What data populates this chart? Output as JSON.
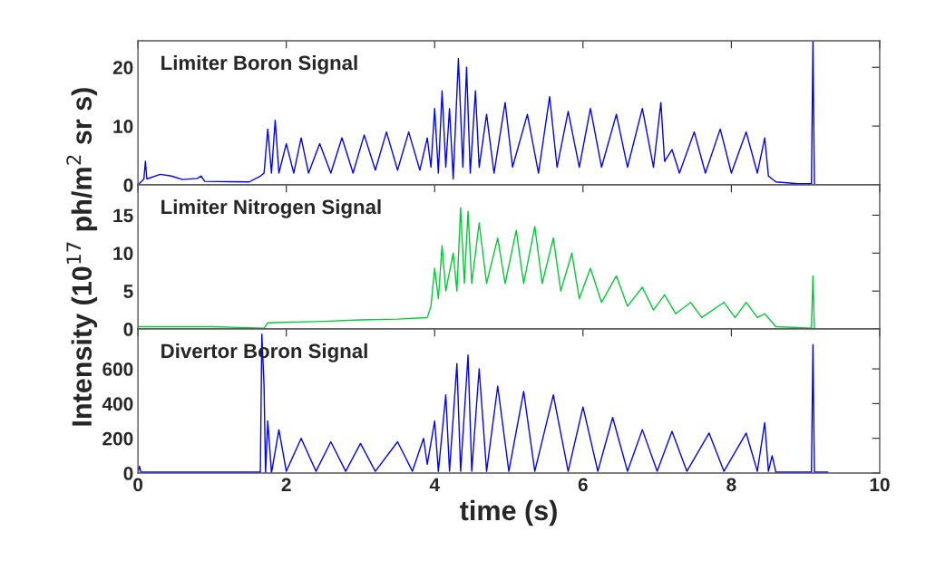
{
  "chart_data": [
    {
      "type": "line",
      "annotations": [
        "Limiter Boron Signal"
      ],
      "xlim": [
        0,
        10
      ],
      "xticks": [
        0,
        2,
        4,
        6,
        8,
        10
      ],
      "ylim": [
        0,
        24.5
      ],
      "yticks": [
        0,
        10,
        20
      ],
      "tick_labels": "y",
      "grid": false,
      "legend": false,
      "series": [
        {
          "color": "#0000ff",
          "x": [
            0,
            0.08,
            0.1,
            0.12,
            0.3,
            0.45,
            0.6,
            0.8,
            0.85,
            0.9,
            1.5,
            1.65,
            1.7,
            1.75,
            1.8,
            1.85,
            1.9,
            2.0,
            2.1,
            2.2,
            2.3,
            2.45,
            2.6,
            2.75,
            2.9,
            3.05,
            3.2,
            3.35,
            3.5,
            3.65,
            3.8,
            3.9,
            3.95,
            4.0,
            4.05,
            4.1,
            4.15,
            4.2,
            4.25,
            4.32,
            4.38,
            4.43,
            4.48,
            4.55,
            4.6,
            4.7,
            4.8,
            4.95,
            5.05,
            5.25,
            5.4,
            5.55,
            5.65,
            5.8,
            5.95,
            6.1,
            6.25,
            6.45,
            6.6,
            6.8,
            6.95,
            7.05,
            7.1,
            7.2,
            7.3,
            7.5,
            7.65,
            7.85,
            8.0,
            8.2,
            8.35,
            8.45,
            8.5,
            8.6,
            8.9,
            9.08,
            9.1,
            9.12
          ],
          "values": [
            0,
            1.0,
            4.0,
            1.0,
            1.8,
            1.5,
            0.9,
            1.1,
            1.5,
            0.6,
            0.5,
            1.5,
            2,
            9.5,
            2,
            11,
            2,
            7,
            2,
            8,
            2,
            7,
            2,
            8,
            2,
            8.5,
            2.5,
            9,
            2.5,
            9,
            2.5,
            8,
            3,
            13,
            2,
            16,
            3,
            13,
            1,
            21.5,
            3,
            20,
            2,
            16,
            3,
            12,
            2,
            14,
            3,
            12,
            2,
            15,
            3,
            12.5,
            3,
            13,
            3,
            12,
            3,
            13,
            3,
            14,
            4,
            6,
            2,
            9,
            2,
            9.5,
            2,
            9,
            2,
            8,
            1.5,
            0.5,
            0.2,
            0.2,
            24.5,
            0.2
          ]
        }
      ]
    },
    {
      "type": "line",
      "annotations": [
        "Limiter Nitrogen Signal"
      ],
      "ylabel": "Intensity (10$^{17}$ ph/m$^{2}$ sr s)",
      "xlim": [
        0,
        10
      ],
      "xticks": [
        0,
        2,
        4,
        6,
        8,
        10
      ],
      "ylim": [
        0,
        19
      ],
      "yticks": [
        0,
        5,
        10,
        15
      ],
      "tick_labels": "y",
      "grid": false,
      "legend": false,
      "series": [
        {
          "color": "#00cc33",
          "x": [
            0,
            1.0,
            1.7,
            1.75,
            2.5,
            3.0,
            3.5,
            3.9,
            3.95,
            4.0,
            4.05,
            4.1,
            4.15,
            4.25,
            4.3,
            4.35,
            4.4,
            4.45,
            4.5,
            4.6,
            4.7,
            4.85,
            4.95,
            5.1,
            5.2,
            5.35,
            5.45,
            5.6,
            5.7,
            5.85,
            5.95,
            6.1,
            6.25,
            6.45,
            6.6,
            6.8,
            6.95,
            7.1,
            7.25,
            7.45,
            7.6,
            7.9,
            8.05,
            8.2,
            8.35,
            8.45,
            8.6,
            9.08,
            9.1,
            9.12
          ],
          "values": [
            0.3,
            0.3,
            0.1,
            0.8,
            1.0,
            1.2,
            1.3,
            1.5,
            3,
            8,
            4,
            11,
            5,
            10,
            5,
            16,
            6,
            15.5,
            6,
            14,
            6,
            12,
            6,
            13,
            6,
            13.5,
            6,
            12,
            5,
            10,
            4,
            8,
            3.5,
            7,
            3,
            5.5,
            2.5,
            4.5,
            2,
            3.5,
            1.5,
            3.5,
            1.5,
            3.5,
            1.5,
            2,
            0.3,
            0.1,
            7,
            0
          ]
        }
      ]
    },
    {
      "type": "line",
      "annotations": [
        "Divertor Boron Signal"
      ],
      "xlabel": "time (s)",
      "xlim": [
        0,
        10
      ],
      "xticks": [
        0,
        2,
        4,
        6,
        8,
        10
      ],
      "ylim": [
        0,
        830
      ],
      "yticks": [
        0,
        200,
        400,
        600
      ],
      "grid": false,
      "legend": false,
      "series": [
        {
          "color": "#0000ff",
          "x": [
            0,
            0.02,
            0.04,
            1.6,
            1.65,
            1.67,
            1.7,
            1.72,
            1.75,
            1.8,
            1.9,
            2.0,
            2.2,
            2.4,
            2.6,
            2.8,
            3.0,
            3.2,
            3.5,
            3.7,
            3.85,
            3.9,
            4.0,
            4.05,
            4.15,
            4.2,
            4.3,
            4.35,
            4.45,
            4.5,
            4.6,
            4.7,
            4.85,
            5.0,
            5.2,
            5.35,
            5.6,
            5.8,
            6.0,
            6.2,
            6.4,
            6.6,
            6.8,
            7.0,
            7.2,
            7.4,
            7.7,
            7.9,
            8.2,
            8.35,
            8.45,
            8.5,
            8.55,
            8.6,
            9.08,
            9.1,
            9.12,
            9.3
          ],
          "values": [
            0,
            40,
            5,
            5,
            5,
            800,
            500,
            0,
            300,
            0,
            250,
            10,
            200,
            10,
            180,
            10,
            170,
            10,
            180,
            10,
            200,
            50,
            300,
            10,
            450,
            10,
            630,
            10,
            680,
            10,
            600,
            10,
            500,
            10,
            470,
            10,
            450,
            10,
            380,
            10,
            320,
            10,
            250,
            10,
            240,
            10,
            230,
            10,
            230,
            10,
            290,
            10,
            100,
            5,
            5,
            740,
            5,
            5
          ]
        }
      ]
    }
  ]
}
